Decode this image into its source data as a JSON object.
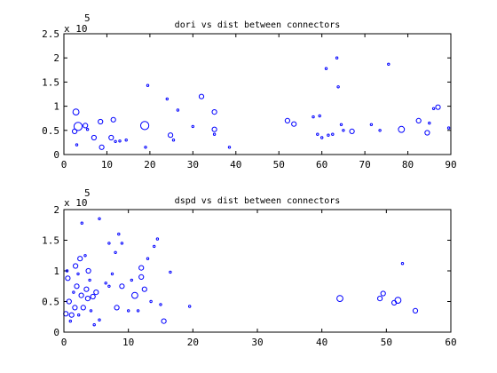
{
  "chart_data": [
    {
      "type": "scatter",
      "title": "dori vs dist between connectors",
      "xlabel": "",
      "ylabel": "",
      "y_multiplier_label": {
        "base": "x 10",
        "exponent": "5"
      },
      "xlim": [
        0,
        90
      ],
      "ylim": [
        0,
        250000
      ],
      "x_ticks": [
        0,
        10,
        20,
        30,
        40,
        50,
        60,
        70,
        80,
        90
      ],
      "y_ticks": [
        0,
        50000,
        100000,
        150000,
        200000,
        250000
      ],
      "y_tick_labels": [
        "0",
        "0.5",
        "1",
        "1.5",
        "2",
        "2.5"
      ],
      "grid": false,
      "marker_color": "#0000ff",
      "points": [
        {
          "x": 2.8,
          "y": 88000,
          "size": "medium"
        },
        {
          "x": 3.3,
          "y": 58000,
          "size": "large"
        },
        {
          "x": 2.5,
          "y": 48000,
          "size": "small"
        },
        {
          "x": 3.0,
          "y": 20000,
          "size": "tiny"
        },
        {
          "x": 5.0,
          "y": 60000,
          "size": "small"
        },
        {
          "x": 5.5,
          "y": 52000,
          "size": "tiny"
        },
        {
          "x": 7.0,
          "y": 35000,
          "size": "small"
        },
        {
          "x": 8.5,
          "y": 68000,
          "size": "small"
        },
        {
          "x": 8.8,
          "y": 15000,
          "size": "small"
        },
        {
          "x": 11.0,
          "y": 35000,
          "size": "small"
        },
        {
          "x": 11.5,
          "y": 72000,
          "size": "small"
        },
        {
          "x": 12.0,
          "y": 27000,
          "size": "tiny"
        },
        {
          "x": 13.0,
          "y": 28000,
          "size": "tiny"
        },
        {
          "x": 14.5,
          "y": 30000,
          "size": "tiny"
        },
        {
          "x": 18.8,
          "y": 60000,
          "size": "large"
        },
        {
          "x": 19.0,
          "y": 15000,
          "size": "tiny"
        },
        {
          "x": 19.5,
          "y": 143000,
          "size": "tiny"
        },
        {
          "x": 24.0,
          "y": 115000,
          "size": "tiny"
        },
        {
          "x": 24.8,
          "y": 40000,
          "size": "small"
        },
        {
          "x": 25.5,
          "y": 30000,
          "size": "tiny"
        },
        {
          "x": 26.5,
          "y": 92000,
          "size": "tiny"
        },
        {
          "x": 30.0,
          "y": 58000,
          "size": "tiny"
        },
        {
          "x": 32.0,
          "y": 120000,
          "size": "small"
        },
        {
          "x": 35.0,
          "y": 88000,
          "size": "small"
        },
        {
          "x": 35.0,
          "y": 52000,
          "size": "small"
        },
        {
          "x": 35.0,
          "y": 42000,
          "size": "tiny"
        },
        {
          "x": 38.5,
          "y": 15000,
          "size": "tiny"
        },
        {
          "x": 52.0,
          "y": 70000,
          "size": "small"
        },
        {
          "x": 53.5,
          "y": 63000,
          "size": "small"
        },
        {
          "x": 58.0,
          "y": 78000,
          "size": "tiny"
        },
        {
          "x": 59.0,
          "y": 42000,
          "size": "tiny"
        },
        {
          "x": 59.5,
          "y": 80000,
          "size": "tiny"
        },
        {
          "x": 60.0,
          "y": 35000,
          "size": "tiny"
        },
        {
          "x": 61.0,
          "y": 178000,
          "size": "tiny"
        },
        {
          "x": 61.5,
          "y": 40000,
          "size": "tiny"
        },
        {
          "x": 62.5,
          "y": 42000,
          "size": "tiny"
        },
        {
          "x": 63.5,
          "y": 200000,
          "size": "tiny"
        },
        {
          "x": 63.8,
          "y": 140000,
          "size": "tiny"
        },
        {
          "x": 64.5,
          "y": 62000,
          "size": "tiny"
        },
        {
          "x": 65.0,
          "y": 50000,
          "size": "tiny"
        },
        {
          "x": 67.0,
          "y": 48000,
          "size": "small"
        },
        {
          "x": 71.5,
          "y": 62000,
          "size": "tiny"
        },
        {
          "x": 73.5,
          "y": 50000,
          "size": "tiny"
        },
        {
          "x": 75.5,
          "y": 187000,
          "size": "tiny"
        },
        {
          "x": 78.5,
          "y": 52000,
          "size": "medium"
        },
        {
          "x": 82.5,
          "y": 70000,
          "size": "small"
        },
        {
          "x": 84.5,
          "y": 45000,
          "size": "small"
        },
        {
          "x": 85.0,
          "y": 65000,
          "size": "tiny"
        },
        {
          "x": 86.0,
          "y": 95000,
          "size": "tiny"
        },
        {
          "x": 87.0,
          "y": 98000,
          "size": "small"
        },
        {
          "x": 89.5,
          "y": 55000,
          "size": "tiny"
        }
      ]
    },
    {
      "type": "scatter",
      "title": "dspd vs dist between connectors",
      "xlabel": "",
      "ylabel": "",
      "y_multiplier_label": {
        "base": "x 10",
        "exponent": "5"
      },
      "xlim": [
        0,
        60
      ],
      "ylim": [
        0,
        200000
      ],
      "x_ticks": [
        0,
        10,
        20,
        30,
        40,
        50,
        60
      ],
      "y_ticks": [
        0,
        50000,
        100000,
        150000,
        200000
      ],
      "y_tick_labels": [
        "0",
        "0.5",
        "1",
        "1.5",
        "2"
      ],
      "grid": false,
      "marker_color": "#0000ff",
      "points": [
        {
          "x": 0.3,
          "y": 30000,
          "size": "small"
        },
        {
          "x": 0.5,
          "y": 100000,
          "size": "tiny"
        },
        {
          "x": 0.6,
          "y": 88000,
          "size": "small"
        },
        {
          "x": 0.8,
          "y": 50000,
          "size": "small"
        },
        {
          "x": 1.0,
          "y": 18000,
          "size": "tiny"
        },
        {
          "x": 1.2,
          "y": 28000,
          "size": "small"
        },
        {
          "x": 1.5,
          "y": 65000,
          "size": "tiny"
        },
        {
          "x": 1.7,
          "y": 40000,
          "size": "small"
        },
        {
          "x": 1.8,
          "y": 108000,
          "size": "small"
        },
        {
          "x": 2.0,
          "y": 75000,
          "size": "small"
        },
        {
          "x": 2.2,
          "y": 95000,
          "size": "tiny"
        },
        {
          "x": 2.3,
          "y": 28000,
          "size": "tiny"
        },
        {
          "x": 2.5,
          "y": 120000,
          "size": "small"
        },
        {
          "x": 2.7,
          "y": 60000,
          "size": "small"
        },
        {
          "x": 2.8,
          "y": 178000,
          "size": "tiny"
        },
        {
          "x": 3.0,
          "y": 40000,
          "size": "small"
        },
        {
          "x": 3.3,
          "y": 125000,
          "size": "tiny"
        },
        {
          "x": 3.5,
          "y": 70000,
          "size": "small"
        },
        {
          "x": 3.7,
          "y": 55000,
          "size": "small"
        },
        {
          "x": 3.8,
          "y": 100000,
          "size": "small"
        },
        {
          "x": 4.0,
          "y": 85000,
          "size": "tiny"
        },
        {
          "x": 4.2,
          "y": 35000,
          "size": "tiny"
        },
        {
          "x": 4.5,
          "y": 58000,
          "size": "small"
        },
        {
          "x": 4.7,
          "y": 12000,
          "size": "tiny"
        },
        {
          "x": 5.0,
          "y": 65000,
          "size": "small"
        },
        {
          "x": 5.5,
          "y": 20000,
          "size": "tiny"
        },
        {
          "x": 5.5,
          "y": 185000,
          "size": "tiny"
        },
        {
          "x": 6.5,
          "y": 80000,
          "size": "tiny"
        },
        {
          "x": 7.0,
          "y": 145000,
          "size": "tiny"
        },
        {
          "x": 7.0,
          "y": 75000,
          "size": "tiny"
        },
        {
          "x": 7.5,
          "y": 95000,
          "size": "tiny"
        },
        {
          "x": 8.0,
          "y": 130000,
          "size": "tiny"
        },
        {
          "x": 8.2,
          "y": 40000,
          "size": "small"
        },
        {
          "x": 8.5,
          "y": 160000,
          "size": "tiny"
        },
        {
          "x": 9.0,
          "y": 75000,
          "size": "small"
        },
        {
          "x": 9.0,
          "y": 145000,
          "size": "tiny"
        },
        {
          "x": 10.0,
          "y": 35000,
          "size": "tiny"
        },
        {
          "x": 10.5,
          "y": 85000,
          "size": "tiny"
        },
        {
          "x": 11.0,
          "y": 60000,
          "size": "medium"
        },
        {
          "x": 11.5,
          "y": 35000,
          "size": "tiny"
        },
        {
          "x": 12.0,
          "y": 105000,
          "size": "small"
        },
        {
          "x": 12.0,
          "y": 90000,
          "size": "small"
        },
        {
          "x": 12.5,
          "y": 70000,
          "size": "small"
        },
        {
          "x": 13.0,
          "y": 120000,
          "size": "tiny"
        },
        {
          "x": 13.5,
          "y": 50000,
          "size": "tiny"
        },
        {
          "x": 14.0,
          "y": 140000,
          "size": "tiny"
        },
        {
          "x": 14.5,
          "y": 152000,
          "size": "tiny"
        },
        {
          "x": 15.0,
          "y": 45000,
          "size": "tiny"
        },
        {
          "x": 15.5,
          "y": 18000,
          "size": "small"
        },
        {
          "x": 16.5,
          "y": 98000,
          "size": "tiny"
        },
        {
          "x": 19.5,
          "y": 42000,
          "size": "tiny"
        },
        {
          "x": 42.8,
          "y": 55000,
          "size": "medium"
        },
        {
          "x": 49.0,
          "y": 55000,
          "size": "small"
        },
        {
          "x": 49.5,
          "y": 63000,
          "size": "small"
        },
        {
          "x": 51.2,
          "y": 48000,
          "size": "small"
        },
        {
          "x": 51.8,
          "y": 52000,
          "size": "medium"
        },
        {
          "x": 52.5,
          "y": 112000,
          "size": "tiny"
        },
        {
          "x": 54.5,
          "y": 35000,
          "size": "small"
        }
      ]
    }
  ]
}
